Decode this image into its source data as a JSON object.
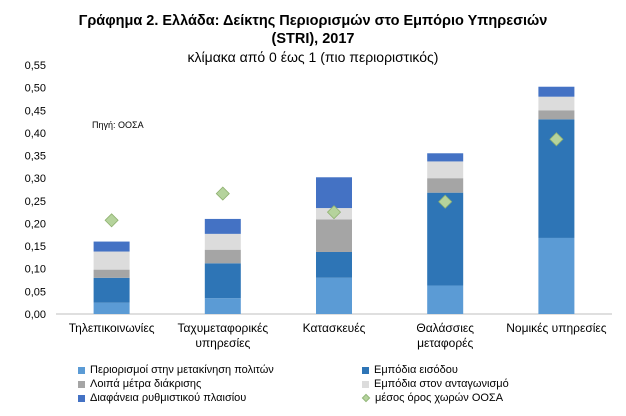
{
  "chart_data": {
    "type": "bar",
    "stacked": true,
    "title_line1": "Γράφημα 2. Ελλάδα: Δείκτης Περιορισμών στο Εμπόριο Υπηρεσιών",
    "title_line2": "(STRI), 2017",
    "subtitle": "κλίμακα από 0 έως 1 (πιο περιοριστικός)",
    "source": "Πηγή: ΟΟΣΑ",
    "ylim": [
      0,
      0.55
    ],
    "yticks": [
      "0,00",
      "0,05",
      "0,10",
      "0,15",
      "0,20",
      "0,25",
      "0,30",
      "0,35",
      "0,40",
      "0,45",
      "0,50",
      "0,55"
    ],
    "categories": [
      [
        "Τηλεπικοινωνίες"
      ],
      [
        "Ταχυμεταφορικές",
        "υπηρεσίες"
      ],
      [
        "Κατασκευές"
      ],
      [
        "Θαλάσσιες",
        "μεταφορές"
      ],
      [
        "Νομικές υπηρεσίες"
      ]
    ],
    "series": [
      {
        "name": "Περιορισμοί στην μετακίνηση πολιτών",
        "color": "#5b9bd5",
        "values": [
          0.025,
          0.035,
          0.08,
          0.063,
          0.168
        ]
      },
      {
        "name": "Εμπόδια εισόδου",
        "color": "#2e75b6",
        "values": [
          0.055,
          0.077,
          0.057,
          0.205,
          0.262
        ]
      },
      {
        "name": "Λοιπά μέτρα διάκρισης",
        "color": "#a5a5a5",
        "values": [
          0.018,
          0.03,
          0.072,
          0.032,
          0.02
        ]
      },
      {
        "name": "Εμπόδια στον ανταγωνισμό",
        "color": "#dcdcdc",
        "values": [
          0.04,
          0.035,
          0.025,
          0.037,
          0.03
        ]
      },
      {
        "name": "Διαφάνεια ρυθμιστικού πλαισίου",
        "color": "#4472c4",
        "values": [
          0.022,
          0.033,
          0.068,
          0.018,
          0.022
        ]
      }
    ],
    "markers": {
      "name": "μέσος όρος χωρών ΟΟΣΑ",
      "color": "#b5d39c",
      "values": [
        0.207,
        0.266,
        0.225,
        0.248,
        0.386
      ]
    },
    "grid": false,
    "legend_position": "bottom"
  }
}
